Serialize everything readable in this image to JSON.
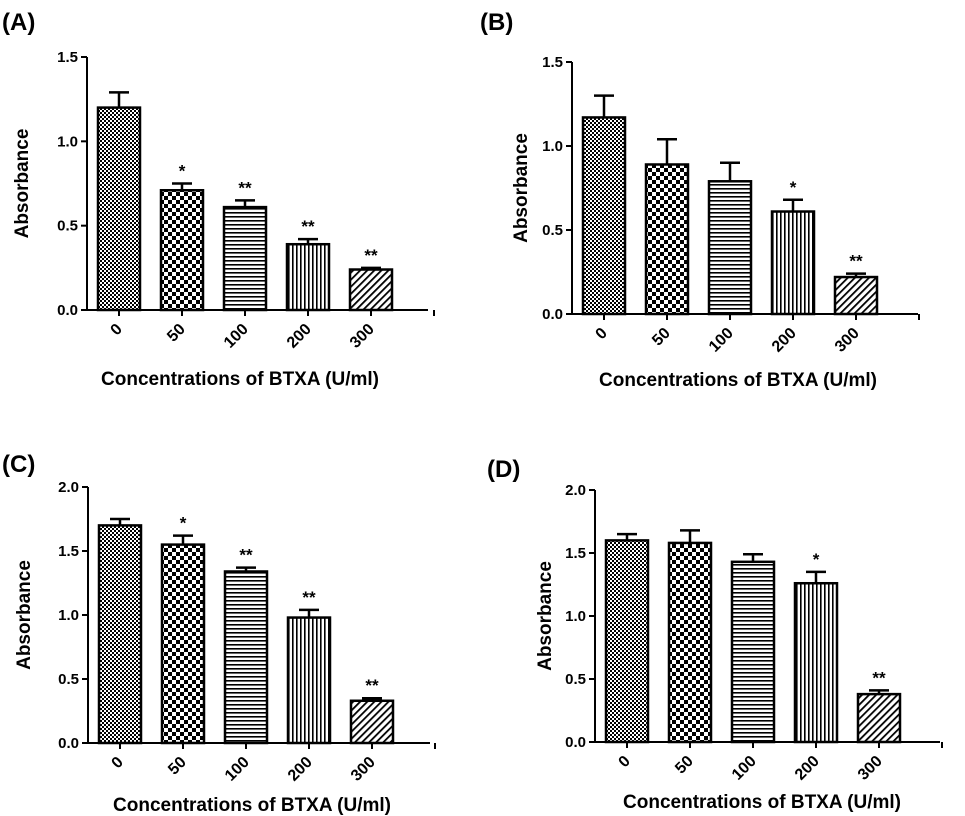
{
  "chart_data": [
    {
      "panel": "(A)",
      "type": "bar",
      "categories": [
        "0",
        "50",
        "100",
        "200",
        "300"
      ],
      "values": [
        1.2,
        0.71,
        0.61,
        0.39,
        0.24
      ],
      "errors": [
        0.09,
        0.04,
        0.04,
        0.03,
        0.01
      ],
      "significance": [
        "",
        "*",
        "**",
        "**",
        "**"
      ],
      "xlabel": "Concentrations of BTXA (U/ml)",
      "ylabel": "Absorbance",
      "ylim": [
        0,
        1.5
      ],
      "yticks": [
        "0.0",
        "0.5",
        "1.0",
        "1.5"
      ],
      "bar_patterns": [
        "dense-check",
        "checker",
        "horizontal",
        "vertical",
        "diagonal"
      ],
      "grid": false,
      "legend": "none"
    },
    {
      "panel": "(B)",
      "type": "bar",
      "categories": [
        "0",
        "50",
        "100",
        "200",
        "300"
      ],
      "values": [
        1.17,
        0.89,
        0.79,
        0.61,
        0.22
      ],
      "errors": [
        0.13,
        0.15,
        0.11,
        0.07,
        0.02
      ],
      "significance": [
        "",
        "",
        "",
        "*",
        "**"
      ],
      "xlabel": "Concentrations of BTXA (U/ml)",
      "ylabel": "Absorbance",
      "ylim": [
        0,
        1.5
      ],
      "yticks": [
        "0.0",
        "0.5",
        "1.0",
        "1.5"
      ],
      "bar_patterns": [
        "dense-check",
        "checker",
        "horizontal",
        "vertical",
        "diagonal"
      ],
      "grid": false,
      "legend": "none"
    },
    {
      "panel": "(C)",
      "type": "bar",
      "categories": [
        "0",
        "50",
        "100",
        "200",
        "300"
      ],
      "values": [
        1.7,
        1.55,
        1.34,
        0.98,
        0.33
      ],
      "errors": [
        0.05,
        0.07,
        0.03,
        0.06,
        0.02
      ],
      "significance": [
        "",
        "*",
        "**",
        "**",
        "**"
      ],
      "xlabel": "Concentrations of BTXA (U/ml)",
      "ylabel": "Absorbance",
      "ylim": [
        0,
        2.0
      ],
      "yticks": [
        "0.0",
        "0.5",
        "1.0",
        "1.5",
        "2.0"
      ],
      "bar_patterns": [
        "dense-check",
        "checker",
        "horizontal",
        "vertical",
        "diagonal"
      ],
      "grid": false,
      "legend": "none"
    },
    {
      "panel": "(D)",
      "type": "bar",
      "categories": [
        "0",
        "50",
        "100",
        "200",
        "300"
      ],
      "values": [
        1.6,
        1.58,
        1.43,
        1.26,
        0.38
      ],
      "errors": [
        0.05,
        0.1,
        0.06,
        0.09,
        0.03
      ],
      "significance": [
        "",
        "",
        "",
        "*",
        "**"
      ],
      "xlabel": "Concentrations of BTXA (U/ml)",
      "ylabel": "Absorbance",
      "ylim": [
        0,
        2.0
      ],
      "yticks": [
        "0.0",
        "0.5",
        "1.0",
        "1.5",
        "2.0"
      ],
      "bar_patterns": [
        "dense-check",
        "checker",
        "horizontal",
        "vertical",
        "diagonal"
      ],
      "grid": false,
      "legend": "none"
    }
  ]
}
